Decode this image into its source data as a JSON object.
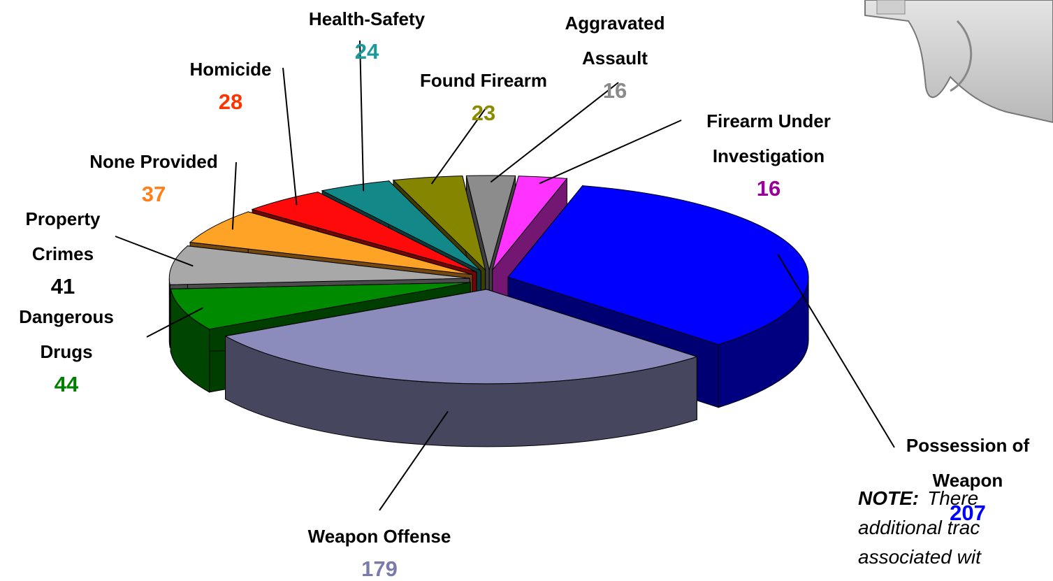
{
  "chart_data": {
    "type": "pie3d",
    "categories": [
      "Firearm Under Investigation",
      "Possession of Weapon",
      "Weapon Offense",
      "Dangerous Drugs",
      "Property Crimes",
      "None Provided",
      "Homicide",
      "Health-Safety",
      "Found Firearm",
      "Aggravated Assault"
    ],
    "values": [
      16,
      207,
      179,
      44,
      41,
      37,
      28,
      24,
      23,
      16
    ],
    "colors": [
      "#ff33ff",
      "#0000ff",
      "#8c8cbc",
      "#008a00",
      "#a8a8a8",
      "#ffa326",
      "#ff0a0a",
      "#128888",
      "#858500",
      "#8c8c8c"
    ],
    "label_colors": [
      "#990099",
      "#0000ff",
      "#7b7bab",
      "#008000",
      "#000000",
      "#ff7f1a",
      "#ff3300",
      "#1a9a9a",
      "#8b8b00",
      "#8a8a8a"
    ],
    "note": {
      "label": "NOTE:",
      "lines": [
        "There",
        "additional trac",
        "associated wit"
      ]
    }
  }
}
